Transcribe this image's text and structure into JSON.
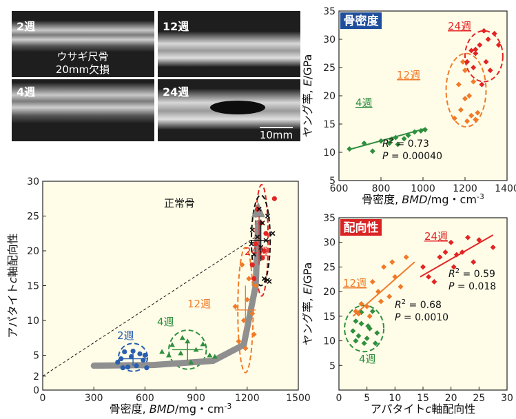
{
  "xray": {
    "panels": [
      "2週",
      "12週",
      "4週",
      "24週"
    ],
    "center_label_1": "ウサギ尺骨",
    "center_label_2": "20mm欠損",
    "scale_bar": "10mm"
  },
  "chart_data": [
    {
      "id": "bottom-left",
      "type": "scatter",
      "xlabel": "骨密度, BMD/mg・cm-3",
      "ylabel": "アパタイトc軸配向性",
      "xlim": [
        0,
        1500
      ],
      "ylim": [
        0,
        30
      ],
      "xticks": [
        0,
        300,
        600,
        900,
        1200,
        1500
      ],
      "yticks": [
        0,
        2,
        5,
        10,
        15,
        20,
        25,
        30
      ],
      "guide_line": {
        "x": [
          0,
          1250
        ],
        "y": [
          2,
          22
        ]
      },
      "trend_arrow": {
        "x": [
          300,
          650,
          1000,
          1180,
          1250,
          1265
        ],
        "y": [
          3.5,
          3.6,
          4.2,
          6.5,
          15,
          24
        ]
      },
      "normal_bone_label": "正常骨",
      "groups": [
        {
          "label": "2週",
          "color": "#2a5fb0",
          "marker": "circle",
          "points": [
            [
              460,
              4.5
            ],
            [
              480,
              5.5
            ],
            [
              520,
              4.8
            ],
            [
              550,
              3.5
            ],
            [
              570,
              5.2
            ],
            [
              590,
              4.3
            ],
            [
              610,
              3.2
            ],
            [
              500,
              3.3
            ],
            [
              440,
              4.0
            ],
            [
              530,
              5.6
            ],
            [
              600,
              5.0
            ],
            [
              470,
              3.2
            ]
          ],
          "mean": [
            530,
            4.5
          ],
          "err_x": 80,
          "err_y": 1.0
        },
        {
          "label": "4週",
          "color": "#2f8f3e",
          "marker": "triangle",
          "points": [
            [
              700,
              5.5
            ],
            [
              760,
              6.5
            ],
            [
              810,
              5.3
            ],
            [
              850,
              7.0
            ],
            [
              870,
              4.0
            ],
            [
              900,
              5.8
            ],
            [
              940,
              6.6
            ],
            [
              980,
              5.0
            ],
            [
              820,
              7.5
            ],
            [
              1010,
              4.8
            ],
            [
              740,
              5.0
            ]
          ],
          "mean": [
            850,
            5.8
          ],
          "err_x": 90,
          "err_y": 1.5
        },
        {
          "label": "12週",
          "color": "#f07a28",
          "marker": "diamond",
          "points": [
            [
              1150,
              7
            ],
            [
              1180,
              10
            ],
            [
              1200,
              13
            ],
            [
              1240,
              8
            ],
            [
              1210,
              16
            ],
            [
              1130,
              12
            ],
            [
              1190,
              6
            ],
            [
              1170,
              18
            ],
            [
              1250,
              15
            ],
            [
              1230,
              11
            ]
          ],
          "mean": [
            1190,
            11.5
          ],
          "err_x": 60,
          "err_y": 3.5
        },
        {
          "label": "24週",
          "color": "#e32424",
          "marker": "circle",
          "points": [
            [
              1230,
              18
            ],
            [
              1250,
              21
            ],
            [
              1280,
              24
            ],
            [
              1300,
              20
            ],
            [
              1260,
              26
            ],
            [
              1360,
              27.5
            ],
            [
              1310,
              22.5
            ],
            [
              1240,
              16
            ],
            [
              1290,
              19
            ]
          ],
          "mean": [
            1270,
            21.5
          ],
          "err_x": 40,
          "err_y": 3.5
        },
        {
          "label": "正常骨",
          "color": "#111111",
          "marker": "x",
          "points": [
            [
              1230,
              23
            ],
            [
              1260,
              22
            ],
            [
              1290,
              24
            ],
            [
              1320,
              25
            ],
            [
              1280,
              20.5
            ],
            [
              1240,
              19.5
            ],
            [
              1310,
              21.5
            ],
            [
              1350,
              22.5
            ],
            [
              1270,
              26
            ],
            [
              1300,
              16
            ],
            [
              1320,
              15.8
            ],
            [
              1330,
              15.6
            ],
            [
              1225,
              21
            ]
          ],
          "mean": [
            1280,
            21.5
          ],
          "err_x": 50,
          "err_y": 3
        }
      ]
    },
    {
      "id": "top-right",
      "type": "scatter",
      "tag": "骨密度",
      "tag_color": "#1f4f9c",
      "xlabel": "骨密度, BMD/mg・cm-3",
      "ylabel": "ヤング率, E/GPa",
      "xlim": [
        600,
        1400
      ],
      "ylim": [
        5,
        35
      ],
      "xticks": [
        600,
        800,
        1000,
        1200,
        1400
      ],
      "yticks": [
        5,
        10,
        15,
        20,
        25,
        30,
        35
      ],
      "stats": {
        "r2": "R2 = 0.73",
        "p": "P = 0.00040"
      },
      "fit": {
        "x": [
          650,
          1010
        ],
        "y": [
          10.5,
          14.2
        ]
      },
      "groups": [
        {
          "label": "4週",
          "color": "#2f8f3e",
          "points": [
            [
              650,
              10.6
            ],
            [
              720,
              11.6
            ],
            [
              760,
              10.2
            ],
            [
              800,
              12.0
            ],
            [
              850,
              12.3
            ],
            [
              880,
              11.4
            ],
            [
              910,
              12.4
            ],
            [
              930,
              13.0
            ],
            [
              960,
              13.6
            ],
            [
              990,
              13.8
            ],
            [
              1010,
              14.0
            ],
            [
              840,
              11.6
            ],
            [
              870,
              12.6
            ]
          ]
        },
        {
          "label": "12週",
          "color": "#f07a28",
          "points": [
            [
              1150,
              16.0
            ],
            [
              1180,
              17.5
            ],
            [
              1200,
              19.5
            ],
            [
              1210,
              15.5
            ],
            [
              1230,
              16.5
            ],
            [
              1250,
              15.8
            ],
            [
              1170,
              22
            ],
            [
              1200,
              24.5
            ],
            [
              1220,
              20
            ],
            [
              1240,
              22.5
            ],
            [
              1260,
              17
            ],
            [
              1190,
              26
            ]
          ]
        },
        {
          "label": "24週",
          "color": "#e32424",
          "points": [
            [
              1210,
              26
            ],
            [
              1230,
              28
            ],
            [
              1250,
              27.5
            ],
            [
              1270,
              29
            ],
            [
              1290,
              31.5
            ],
            [
              1310,
              30
            ],
            [
              1340,
              31
            ],
            [
              1360,
              29
            ],
            [
              1240,
              25
            ],
            [
              1280,
              22
            ],
            [
              1300,
              26
            ],
            [
              1320,
              24.5
            ],
            [
              1250,
              28.2
            ]
          ]
        }
      ]
    },
    {
      "id": "bottom-right",
      "type": "scatter",
      "tag": "配向性",
      "tag_color": "#d92424",
      "xlabel": "アパタイトc軸配向性",
      "ylabel": "ヤング率, E/GPa",
      "xlim": [
        0,
        30
      ],
      "ylim": [
        0,
        35
      ],
      "xticks": [
        0,
        5,
        10,
        15,
        20,
        25,
        30
      ],
      "yticks": [
        5,
        10,
        15,
        20,
        25,
        30,
        35
      ],
      "stats_24": {
        "r2": "R2 = 0.59",
        "p": "P = 0.018"
      },
      "stats_12": {
        "r2": "R2 = 0.68",
        "p": "P = 0.0010"
      },
      "fit_24": {
        "x": [
          14.5,
          27.5
        ],
        "y": [
          23.0,
          31.5
        ]
      },
      "fit_12": {
        "x": [
          2.5,
          13.5
        ],
        "y": [
          15.0,
          26.0
        ]
      },
      "groups": [
        {
          "label": "4週",
          "color": "#2f8f3e",
          "points": [
            [
              2.5,
              12
            ],
            [
              3,
              14
            ],
            [
              3.5,
              11
            ],
            [
              4,
              13.5
            ],
            [
              5,
              10.5
            ],
            [
              5.5,
              12.5
            ],
            [
              6,
              16
            ],
            [
              4.5,
              9.5
            ],
            [
              6.5,
              9.5
            ],
            [
              3,
              10
            ],
            [
              5.2,
              13
            ],
            [
              4,
              15.8
            ],
            [
              6.8,
              11.6
            ]
          ]
        },
        {
          "label": "12週",
          "color": "#f07a28",
          "points": [
            [
              3,
              16
            ],
            [
              3.5,
              15.5
            ],
            [
              5,
              17
            ],
            [
              5.5,
              15
            ],
            [
              6,
              22
            ],
            [
              7,
              20
            ],
            [
              8,
              25
            ],
            [
              9,
              19
            ],
            [
              10,
              23
            ],
            [
              11,
              21
            ],
            [
              12,
              27
            ],
            [
              7.5,
              18
            ],
            [
              4,
              17.5
            ],
            [
              9.5,
              26
            ]
          ]
        },
        {
          "label": "24週",
          "color": "#e32424",
          "points": [
            [
              15,
              25
            ],
            [
              16,
              23
            ],
            [
              17,
              22
            ],
            [
              18,
              27
            ],
            [
              19,
              28
            ],
            [
              20,
              30
            ],
            [
              21,
              27.5
            ],
            [
              22,
              28
            ],
            [
              23,
              31
            ],
            [
              24,
              26
            ],
            [
              25,
              30.5
            ],
            [
              27.5,
              29
            ],
            [
              20.5,
              25
            ]
          ]
        }
      ]
    }
  ]
}
